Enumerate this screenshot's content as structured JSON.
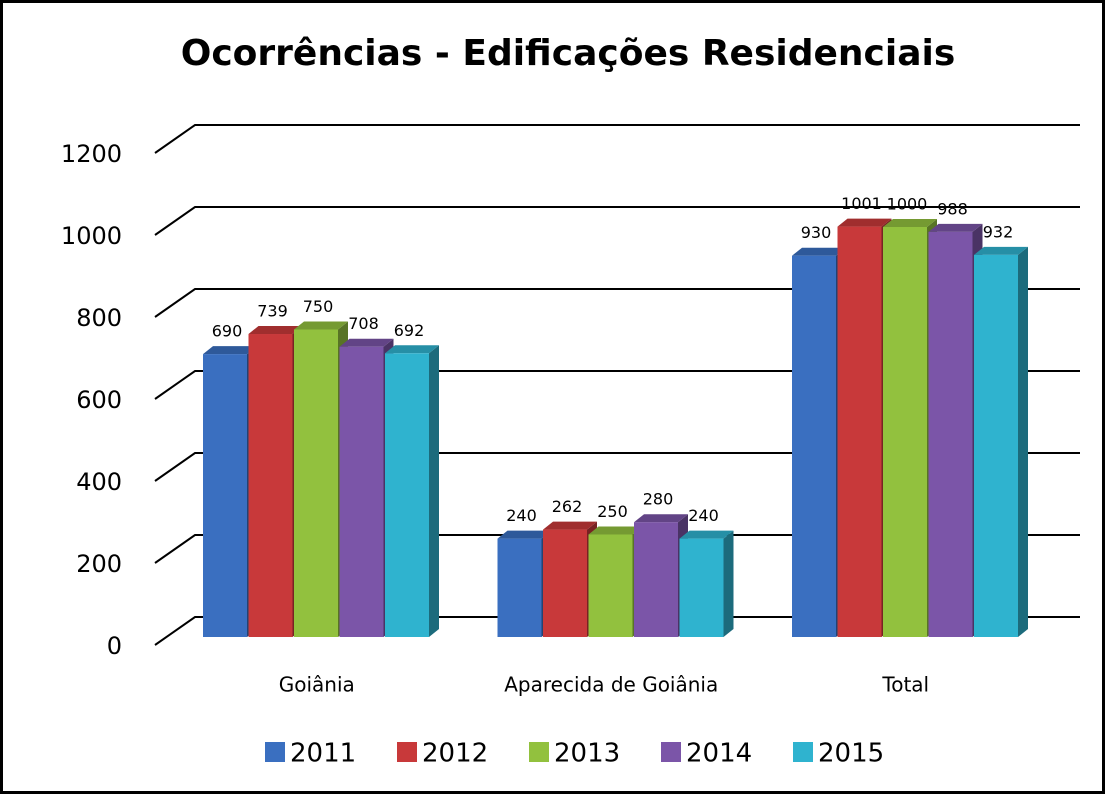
{
  "chart_data": {
    "type": "bar3d",
    "title": "Ocorrências - Edificações Residenciais",
    "categories": [
      "Goiânia",
      "Aparecida de Goiânia",
      "Total"
    ],
    "series": [
      {
        "name": "2011",
        "color": "#3a6fc0",
        "values": [
          690,
          240,
          930
        ]
      },
      {
        "name": "2012",
        "color": "#c8393a",
        "values": [
          739,
          262,
          1001
        ]
      },
      {
        "name": "2013",
        "color": "#92c13e",
        "values": [
          750,
          250,
          1000
        ]
      },
      {
        "name": "2014",
        "color": "#7b55a8",
        "values": [
          708,
          280,
          988
        ]
      },
      {
        "name": "2015",
        "color": "#2fb3cf",
        "values": [
          692,
          240,
          932
        ]
      }
    ],
    "ylim": [
      0,
      1200
    ],
    "yticks": [
      0,
      200,
      400,
      600,
      800,
      1000,
      1200
    ],
    "grid": true,
    "legend": "bottom"
  }
}
